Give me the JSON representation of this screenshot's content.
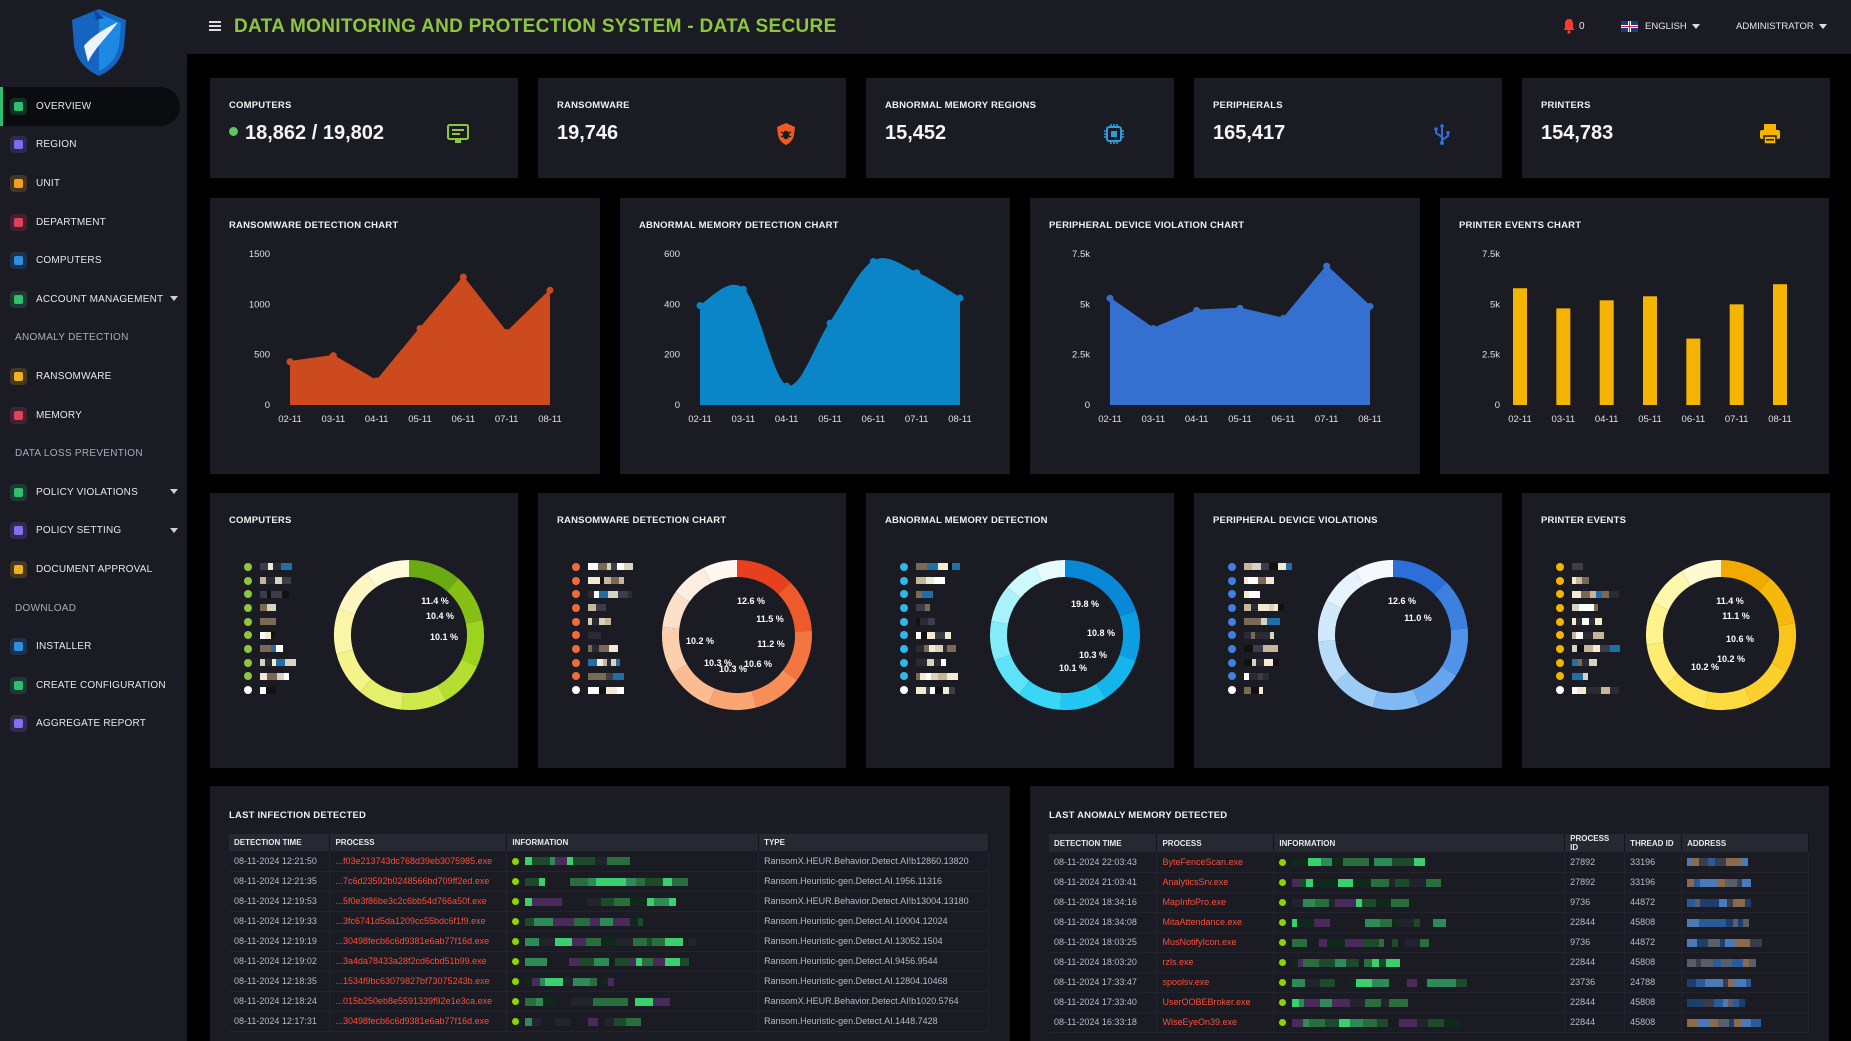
{
  "header": {
    "title": "DATA MONITORING AND PROTECTION SYSTEM - DATA SECURE",
    "notification_count": "0",
    "language": "ENGLISH",
    "user": "ADMINISTRATOR"
  },
  "sidebar": {
    "items": [
      {
        "label": "OVERVIEW",
        "icon": "chart-line-icon",
        "color": "#2fbf71",
        "active": true
      },
      {
        "label": "REGION",
        "icon": "map-icon",
        "color": "#7c6cf0"
      },
      {
        "label": "UNIT",
        "icon": "building-icon",
        "color": "#f0a020"
      },
      {
        "label": "DEPARTMENT",
        "icon": "users-icon",
        "color": "#e0405a"
      },
      {
        "label": "COMPUTERS",
        "icon": "monitor-icon",
        "color": "#2d8fe0"
      },
      {
        "label": "ACCOUNT MANAGEMENT",
        "icon": "user-icon",
        "color": "#2fbf71",
        "caret": true
      },
      {
        "section": "ANOMALY DETECTION"
      },
      {
        "label": "RANSOMWARE",
        "icon": "shield-icon",
        "color": "#f0b020"
      },
      {
        "label": "MEMORY",
        "icon": "memory-icon",
        "color": "#e0405a"
      },
      {
        "section": "DATA LOSS PREVENTION"
      },
      {
        "label": "POLICY VIOLATIONS",
        "icon": "policy-icon",
        "color": "#2fbf71",
        "caret": true
      },
      {
        "label": "POLICY SETTING",
        "icon": "settings-icon",
        "color": "#8a6cf0",
        "caret": true
      },
      {
        "label": "DOCUMENT APPROVAL",
        "icon": "document-icon",
        "color": "#f0b020"
      },
      {
        "section": "DOWNLOAD"
      },
      {
        "label": "INSTALLER",
        "icon": "installer-icon",
        "color": "#2d8fe0"
      },
      {
        "label": "CREATE CONFIGURATION",
        "icon": "config-icon",
        "color": "#2fbf71"
      },
      {
        "label": "AGGREGATE REPORT",
        "icon": "report-icon",
        "color": "#8a6cf0"
      }
    ]
  },
  "stats": [
    {
      "title": "COMPUTERS",
      "value": "18,862 / 19,802",
      "icon": "monitor-icon",
      "color": "#8dc63f",
      "dot": true
    },
    {
      "title": "RANSOMWARE",
      "value": "19,746",
      "icon": "shield-bug-icon",
      "color": "#f05a22"
    },
    {
      "title": "ABNORMAL MEMORY REGIONS",
      "value": "15,452",
      "icon": "chip-icon",
      "color": "#2d9cdb"
    },
    {
      "title": "PERIPHERALS",
      "value": "165,417",
      "icon": "usb-icon",
      "color": "#2f6fd8"
    },
    {
      "title": "PRINTERS",
      "value": "154,783",
      "icon": "printer-icon",
      "color": "#f5b400"
    }
  ],
  "charts": {
    "ransomware": {
      "title": "RANSOMWARE DETECTION CHART"
    },
    "memory": {
      "title": "ABNORMAL MEMORY DETECTION CHART"
    },
    "peripheral": {
      "title": "PERIPHERAL DEVICE VIOLATION CHART"
    },
    "printer": {
      "title": "PRINTER EVENTS CHART"
    }
  },
  "chart_data": [
    {
      "type": "area",
      "title": "RANSOMWARE DETECTION CHART",
      "categories": [
        "02-11",
        "03-11",
        "04-11",
        "05-11",
        "06-11",
        "07-11",
        "08-11"
      ],
      "values": [
        430,
        490,
        240,
        760,
        1270,
        720,
        1140
      ],
      "ylim": [
        0,
        1500
      ],
      "yticks": [
        "0",
        "500",
        "1000",
        "1500"
      ],
      "color": "#cc4a1d"
    },
    {
      "type": "area",
      "title": "ABNORMAL MEMORY DETECTION CHART",
      "categories": [
        "02-11",
        "03-11",
        "04-11",
        "05-11",
        "06-11",
        "07-11",
        "08-11"
      ],
      "values": [
        395,
        460,
        75,
        325,
        570,
        525,
        425
      ],
      "ylim": [
        0,
        600
      ],
      "yticks": [
        "0",
        "200",
        "400",
        "600"
      ],
      "color": "#0a86c8",
      "smooth": true
    },
    {
      "type": "area",
      "title": "PERIPHERAL DEVICE VIOLATION CHART",
      "categories": [
        "02-11",
        "03-11",
        "04-11",
        "05-11",
        "06-11",
        "07-11",
        "08-11"
      ],
      "values": [
        5300,
        3800,
        4700,
        4800,
        4300,
        6900,
        4900
      ],
      "ylim": [
        0,
        7500
      ],
      "yticks": [
        "0",
        "2.5k",
        "5k",
        "7.5k"
      ],
      "color": "#3470d0"
    },
    {
      "type": "bar",
      "title": "PRINTER EVENTS CHART",
      "categories": [
        "02-11",
        "03-11",
        "04-11",
        "05-11",
        "06-11",
        "07-11",
        "08-11"
      ],
      "values": [
        5800,
        4800,
        5200,
        5400,
        3300,
        5000,
        6000
      ],
      "ylim": [
        0,
        7500
      ],
      "yticks": [
        "0",
        "2.5k",
        "5k",
        "7.5k"
      ],
      "color": "#f5b400"
    }
  ],
  "donuts": [
    {
      "title": "COMPUTERS",
      "dot_color": "#8dc63f",
      "palette": [
        "#6aaa12",
        "#86c014",
        "#9cd31e",
        "#b5df30",
        "#cfe94a",
        "#e4ef6a",
        "#f4f48a",
        "#fbf5a8",
        "#fff7c2",
        "#fffbd9"
      ],
      "labels": [
        "11.4 %",
        "10.4 %",
        "10.1 %"
      ]
    },
    {
      "title": "RANSOMWARE DETECTION CHART",
      "dot_color": "#f06a3a",
      "palette": [
        "#e6401e",
        "#ee5a2c",
        "#f37540",
        "#f78e58",
        "#faa673",
        "#fbbc91",
        "#fccfad",
        "#fde0c9",
        "#feeee2",
        "#fff7f0"
      ],
      "labels": [
        "12.6 %",
        "11.5 %",
        "11.2 %",
        "10.6 %",
        "10.3 %",
        "10.3 %",
        "10.2 %"
      ]
    },
    {
      "title": "ABNORMAL MEMORY DETECTION",
      "dot_color": "#2fb9e8",
      "palette": [
        "#0a88d8",
        "#0e9fe3",
        "#16b4ec",
        "#22c7f2",
        "#3ad6f5",
        "#5ee2f8",
        "#84ebfa",
        "#a9f2fc",
        "#cdf8fd",
        "#e7fcfe"
      ],
      "labels": [
        "19.8 %",
        "10.8 %",
        "10.3 %",
        "10.1 %"
      ]
    },
    {
      "title": "PERIPHERAL DEVICE VIOLATIONS",
      "dot_color": "#3f7fe0",
      "palette": [
        "#2d6fd8",
        "#3c81e0",
        "#4f94e8",
        "#66a6ee",
        "#80b9f3",
        "#9ccbf6",
        "#b8dbf9",
        "#d2e8fb",
        "#e6f2fd",
        "#f4f9fe"
      ],
      "labels": [
        "12.6 %",
        "11.0 %"
      ]
    },
    {
      "title": "PRINTER EVENTS",
      "dot_color": "#f5b400",
      "palette": [
        "#f2a900",
        "#f6b80a",
        "#f9c51a",
        "#fbd02c",
        "#fcdb40",
        "#fde457",
        "#feec70",
        "#fef28c",
        "#fff7ac",
        "#fffbd0"
      ],
      "labels": [
        "11.4 %",
        "11.1 %",
        "10.6 %",
        "10.2 %",
        "10.2 %"
      ]
    }
  ],
  "infection_table": {
    "title": "LAST INFECTION DETECTED",
    "columns": [
      "DETECTION TIME",
      "PROCESS",
      "INFORMATION",
      "TYPE"
    ],
    "rows": [
      [
        "08-11-2024 12:21:50",
        "...f03e213743dc768d39eb3075985.exe",
        "",
        "RansomX.HEUR.Behavior.Detect.AI!b12860.13820"
      ],
      [
        "08-11-2024 12:21:35",
        "...7c6d23592b0248566bd709ff2ed.exe",
        "",
        "Ransom.Heuristic-gen.Detect.AI.1956.11316"
      ],
      [
        "08-11-2024 12:19:53",
        "...5f0e3f86be3c2c6bb54d766a50f.exe",
        "",
        "RansomX.HEUR.Behavior.Detect.AI!b13004.13180"
      ],
      [
        "08-11-2024 12:19:33",
        "...3fc6741d5da1209cc55bdc6f1f9.exe",
        "",
        "Ransom.Heuristic-gen.Detect.AI.10004.12024"
      ],
      [
        "08-11-2024 12:19:19",
        "...30498fecb6c6d9381e6ab77f16d.exe",
        "",
        "Ransom.Heuristic-gen.Detect.AI.13052.1504"
      ],
      [
        "08-11-2024 12:19:02",
        "...3a4da78433a28f2cd6cbd51b99.exe",
        "",
        "Ransom.Heuristic-gen.Detect.AI.9456.9544"
      ],
      [
        "08-11-2024 12:18:35",
        "...1534f9bc63079827bf73075243b.exe",
        "",
        "Ransom.Heuristic-gen.Detect.AI.12804.10468"
      ],
      [
        "08-11-2024 12:18:24",
        "...015b250eb8e5591339f92e1e3ca.exe",
        "",
        "RansomX.HEUR.Behavior.Detect.AI!b1020.5764"
      ],
      [
        "08-11-2024 12:17:31",
        "...30498fecb6c6d9381e6ab77f16d.exe",
        "",
        "Ransom.Heuristic-gen.Detect.AI.1448.7428"
      ]
    ]
  },
  "memory_table": {
    "title": "LAST ANOMALY MEMORY DETECTED",
    "columns": [
      "DETECTION TIME",
      "PROCESS",
      "INFORMATION",
      "PROCESS ID",
      "THREAD ID",
      "ADDRESS"
    ],
    "rows": [
      [
        "08-11-2024 22:03:43",
        "ByteFenceScan.exe",
        "",
        "27892",
        "33196",
        ""
      ],
      [
        "08-11-2024 21:03:41",
        "AnalyticsSrv.exe",
        "",
        "27892",
        "33196",
        ""
      ],
      [
        "08-11-2024 18:34:16",
        "MapInfoPro.exe",
        "",
        "9736",
        "44872",
        ""
      ],
      [
        "08-11-2024 18:34:08",
        "MitaAttendance.exe",
        "",
        "22844",
        "45808",
        ""
      ],
      [
        "08-11-2024 18:03:25",
        "MusNotifyIcon.exe",
        "",
        "9736",
        "44872",
        ""
      ],
      [
        "08-11-2024 18:03:20",
        "rzls.exe",
        "",
        "22844",
        "45808",
        ""
      ],
      [
        "08-11-2024 17:33:47",
        "spoolsv.exe",
        "",
        "23736",
        "24788",
        ""
      ],
      [
        "08-11-2024 17:33:40",
        "UserOOBEBroker.exe",
        "",
        "22844",
        "45808",
        ""
      ],
      [
        "08-11-2024 16:33:18",
        "WiseEyeOn39.exe",
        "",
        "22844",
        "45808",
        ""
      ]
    ]
  }
}
